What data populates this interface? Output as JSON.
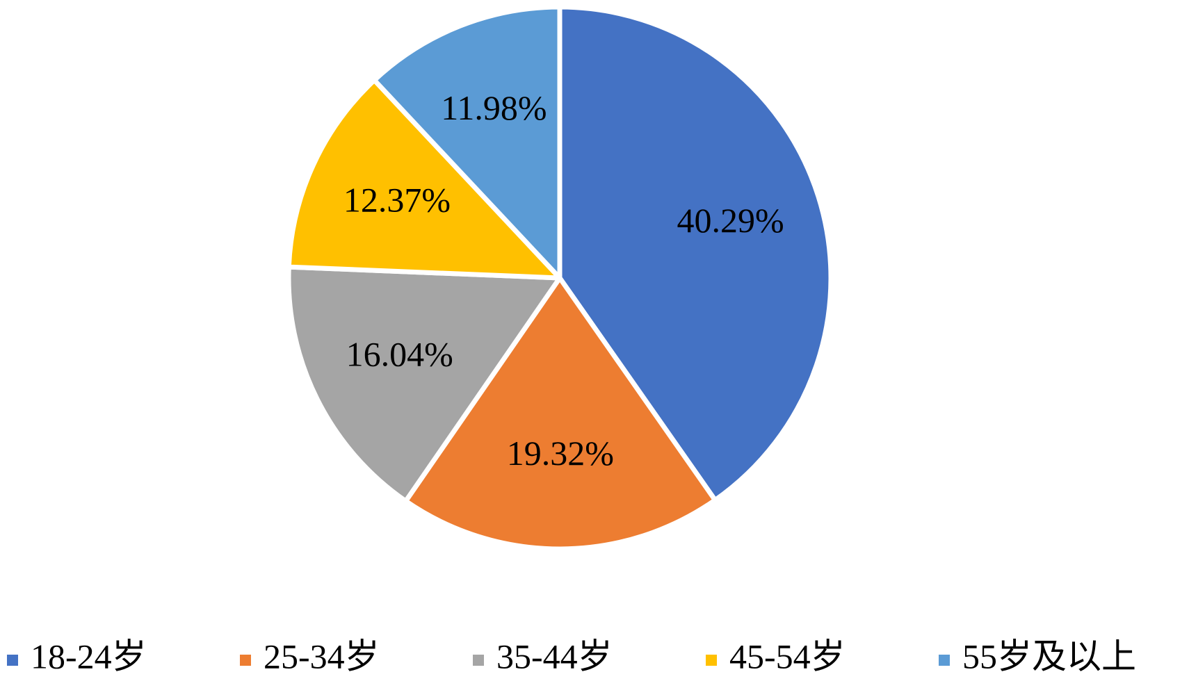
{
  "chart_data": {
    "type": "pie",
    "categories": [
      "18-24岁",
      "25-34岁",
      "35-44岁",
      "45-54岁",
      "55岁及以上"
    ],
    "values": [
      40.29,
      19.32,
      16.04,
      12.37,
      11.98
    ],
    "value_labels": [
      "40.29%",
      "19.32%",
      "16.04%",
      "12.37%",
      "11.98%"
    ],
    "colors": [
      "#4472c4",
      "#ed7d31",
      "#a5a5a5",
      "#ffc000",
      "#5b9bd5"
    ],
    "legend": "bottom"
  }
}
